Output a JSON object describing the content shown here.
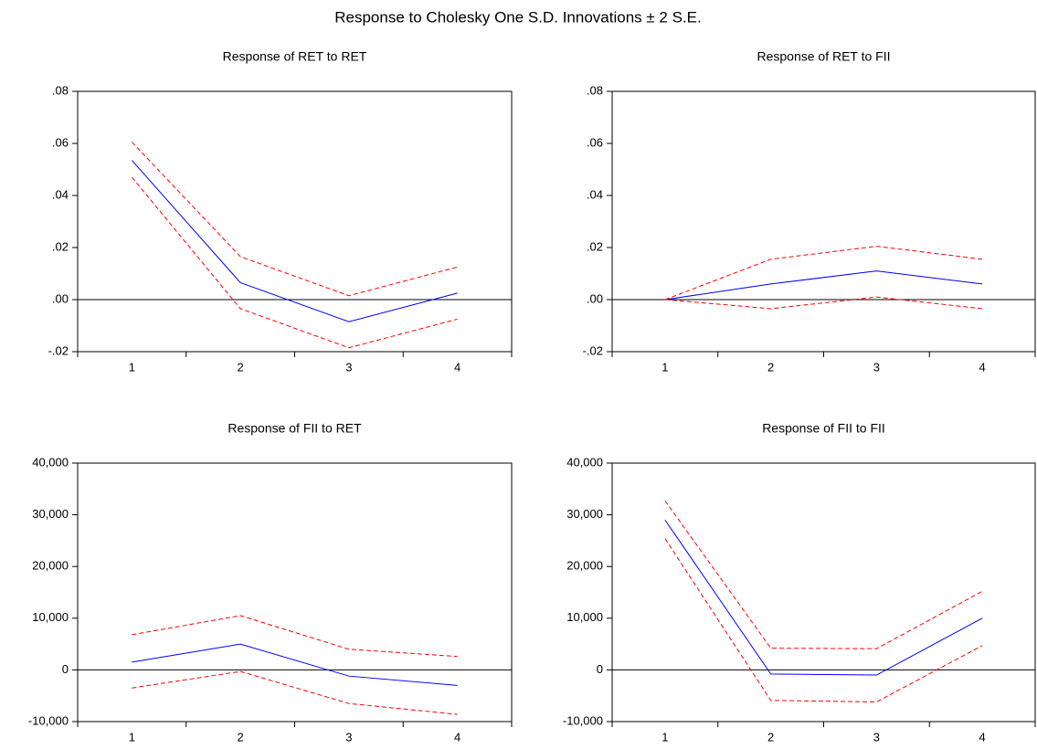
{
  "title": "Response to Cholesky One S.D. Innovations ± 2 S.E.",
  "chart_data": [
    {
      "type": "line",
      "title": "Response of RET to RET",
      "categories": [
        "1",
        "2",
        "3",
        "4"
      ],
      "series": [
        {
          "color": "#0000ff",
          "dashed": false,
          "values": [
            0.0535,
            0.0065,
            -0.0085,
            0.0025
          ]
        },
        {
          "color": "#ff0000",
          "dashed": true,
          "values": [
            0.0605,
            0.0165,
            0.0015,
            0.0125
          ]
        },
        {
          "color": "#ff0000",
          "dashed": true,
          "values": [
            0.047,
            -0.0035,
            -0.0185,
            -0.0075
          ]
        }
      ],
      "ylim": [
        -0.02,
        0.08
      ],
      "yticks": [
        {
          "value": -0.02,
          "label": "-.02"
        },
        {
          "value": 0,
          "label": ".00"
        },
        {
          "value": 0.02,
          "label": ".02"
        },
        {
          "value": 0.04,
          "label": ".04"
        },
        {
          "value": 0.06,
          "label": ".06"
        },
        {
          "value": 0.08,
          "label": ".08"
        }
      ],
      "zero_line": true
    },
    {
      "type": "line",
      "title": "Response of RET to FII",
      "categories": [
        "1",
        "2",
        "3",
        "4"
      ],
      "series": [
        {
          "color": "#0000ff",
          "dashed": false,
          "values": [
            0,
            0.006,
            0.011,
            0.006
          ]
        },
        {
          "color": "#ff0000",
          "dashed": true,
          "values": [
            0,
            0.0155,
            0.0205,
            0.0155
          ]
        },
        {
          "color": "#ff0000",
          "dashed": true,
          "values": [
            0,
            -0.0035,
            0.001,
            -0.0035
          ]
        }
      ],
      "ylim": [
        -0.02,
        0.08
      ],
      "yticks": [
        {
          "value": -0.02,
          "label": "-.02"
        },
        {
          "value": 0,
          "label": ".00"
        },
        {
          "value": 0.02,
          "label": ".02"
        },
        {
          "value": 0.04,
          "label": ".04"
        },
        {
          "value": 0.06,
          "label": ".06"
        },
        {
          "value": 0.08,
          "label": ".08"
        }
      ],
      "zero_line": true
    },
    {
      "type": "line",
      "title": "Response of FII to RET",
      "categories": [
        "1",
        "2",
        "3",
        "4"
      ],
      "series": [
        {
          "color": "#0000ff",
          "dashed": false,
          "values": [
            1500,
            5000,
            -1200,
            -3000
          ]
        },
        {
          "color": "#ff0000",
          "dashed": true,
          "values": [
            6800,
            10500,
            4000,
            2600
          ]
        },
        {
          "color": "#ff0000",
          "dashed": true,
          "values": [
            -3500,
            -300,
            -6500,
            -8600
          ]
        }
      ],
      "ylim": [
        -10000,
        40000
      ],
      "yticks": [
        {
          "value": -10000,
          "label": "-10,000"
        },
        0,
        {
          "value": 10000,
          "label": "10,000"
        },
        {
          "value": 20000,
          "label": "20,000"
        },
        {
          "value": 30000,
          "label": "30,000"
        },
        {
          "value": 40000,
          "label": "40,000"
        }
      ],
      "zero_line": true
    },
    {
      "type": "line",
      "title": "Response of FII to FII",
      "categories": [
        "1",
        "2",
        "3",
        "4"
      ],
      "series": [
        {
          "color": "#0000ff",
          "dashed": false,
          "values": [
            29000,
            -800,
            -1000,
            10000
          ]
        },
        {
          "color": "#ff0000",
          "dashed": true,
          "values": [
            32700,
            4200,
            4100,
            15200
          ]
        },
        {
          "color": "#ff0000",
          "dashed": true,
          "values": [
            25400,
            -5900,
            -6200,
            4700
          ]
        }
      ],
      "ylim": [
        -10000,
        40000
      ],
      "yticks": [
        {
          "value": -10000,
          "label": "-10,000"
        },
        0,
        {
          "value": 10000,
          "label": "10,000"
        },
        {
          "value": 20000,
          "label": "20,000"
        },
        {
          "value": 30000,
          "label": "30,000"
        },
        {
          "value": 40000,
          "label": "40,000"
        }
      ],
      "zero_line": true
    }
  ]
}
